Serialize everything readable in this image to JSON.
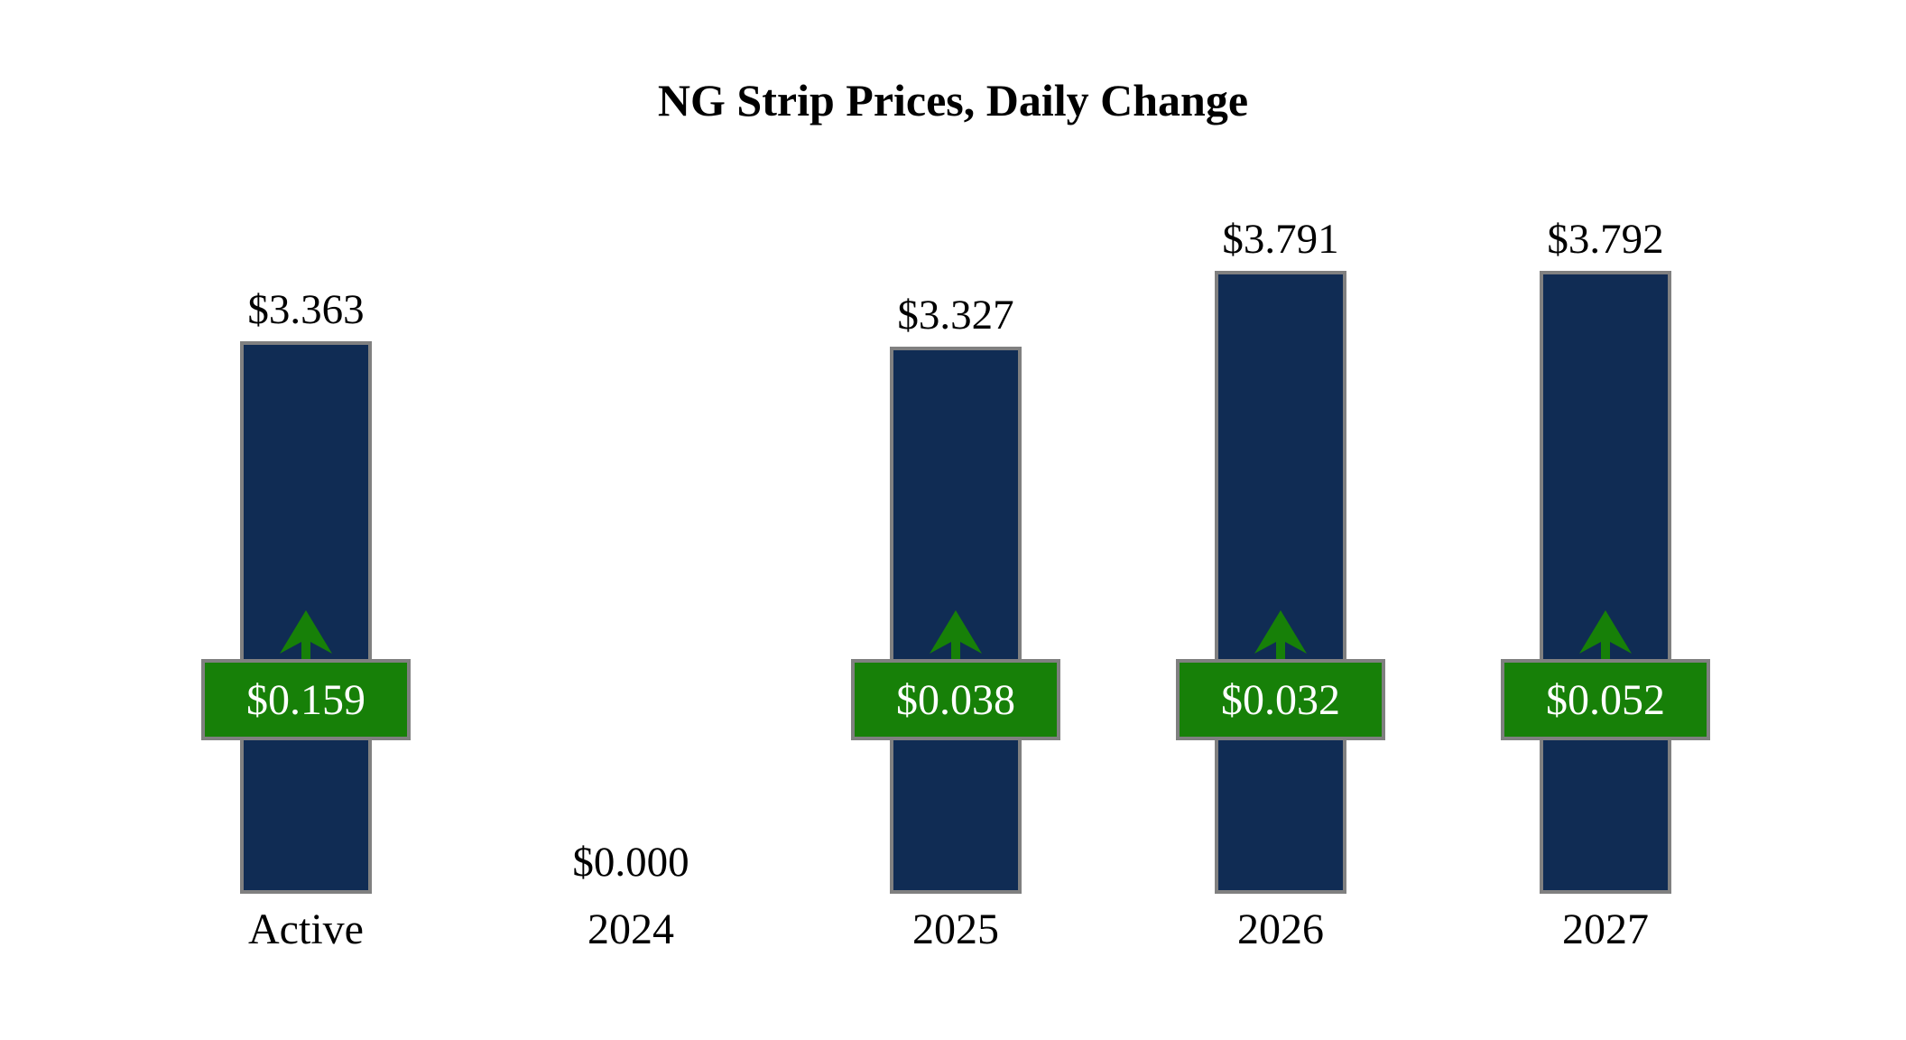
{
  "page": {
    "background": "#ffffff"
  },
  "chart_data": {
    "type": "bar",
    "title": "NG Strip Prices, Daily Change",
    "categories": [
      "Active",
      "2024",
      "2025",
      "2026",
      "2027"
    ],
    "series": [
      {
        "name": "Strip Price",
        "values": [
          3.363,
          0.0,
          3.327,
          3.791,
          3.792
        ]
      },
      {
        "name": "Daily Change",
        "values": [
          0.159,
          null,
          0.038,
          0.032,
          0.052
        ]
      }
    ],
    "value_labels": [
      "$3.363",
      "$0.000",
      "$3.327",
      "$3.791",
      "$3.792"
    ],
    "change_labels": [
      "$0.159",
      null,
      "$0.038",
      "$0.032",
      "$0.052"
    ],
    "ylim": [
      0,
      4.0
    ],
    "grid": false,
    "legend": "none",
    "colors": {
      "bar_fill": "#102C54",
      "bar_border": "#808080",
      "badge_fill": "#178008",
      "badge_border": "#808080",
      "arrow": "#178008",
      "value_text": "#000000",
      "badge_text": "#FFFFFF",
      "title_text": "#000000"
    }
  }
}
